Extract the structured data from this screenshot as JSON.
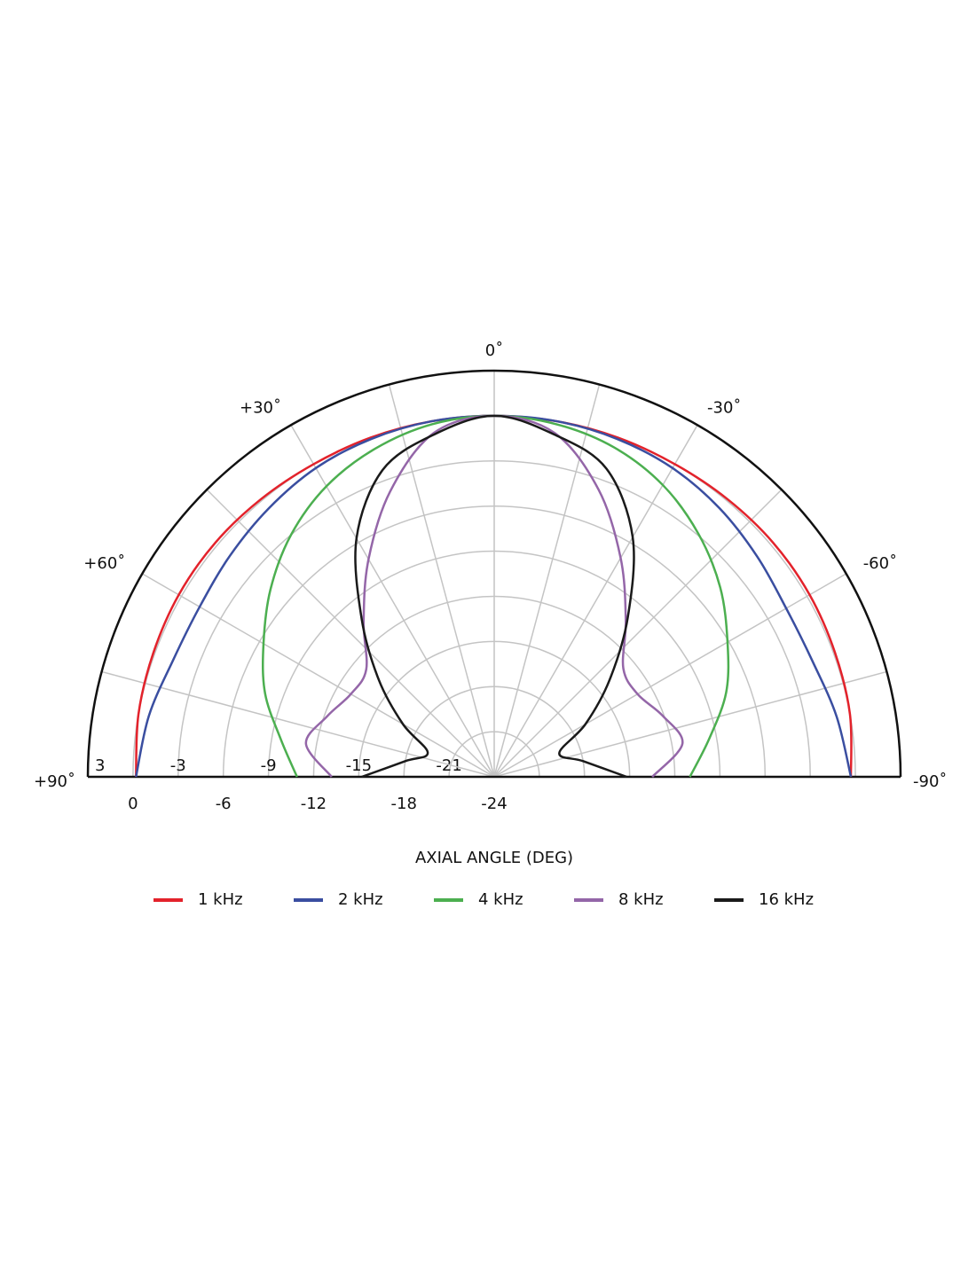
{
  "chart_data": {
    "type": "polar",
    "xlabel": "AXIAL ANGLE (DEG)",
    "xlim": [
      -90,
      90
    ],
    "xticks": [
      {
        "value": 90,
        "label": "+90˚"
      },
      {
        "value": 60,
        "label": "+60˚"
      },
      {
        "value": 30,
        "label": "+30˚"
      },
      {
        "value": 0,
        "label": "0˚"
      },
      {
        "value": -30,
        "label": "-30˚"
      },
      {
        "value": -60,
        "label": "-60˚"
      },
      {
        "value": -90,
        "label": "-90˚"
      }
    ],
    "ylim": [
      -24,
      3
    ],
    "yticks": [
      3,
      0,
      -3,
      -6,
      -9,
      -12,
      -15,
      -18,
      -21,
      -24
    ],
    "grid": true,
    "x": [
      -90,
      -80,
      -70,
      -60,
      -50,
      -40,
      -30,
      -20,
      -10,
      0,
      10,
      20,
      30,
      40,
      50,
      60,
      70,
      80,
      90
    ],
    "series": [
      {
        "name": "1 kHz",
        "color": "#e3222b",
        "values": [
          -0.3,
          0,
          0.1,
          0.2,
          0.2,
          0.1,
          0,
          0,
          0,
          0,
          0,
          0,
          0,
          0.1,
          0.2,
          0.2,
          0.1,
          0,
          -0.2
        ]
      },
      {
        "name": "2 kHz",
        "color": "#3a4ea0",
        "values": [
          -0.3,
          -0.9,
          -1.5,
          -1.6,
          -1.2,
          -0.7,
          -0.3,
          -0.1,
          0,
          0,
          0,
          -0.1,
          -0.3,
          -0.7,
          -1.1,
          -1.4,
          -1.3,
          -0.7,
          -0.2
        ]
      },
      {
        "name": "4 kHz",
        "color": "#4caf50",
        "values": [
          -11,
          -9.5,
          -7.6,
          -6.1,
          -4.4,
          -2.9,
          -1.6,
          -0.7,
          -0.2,
          0,
          -0.2,
          -0.8,
          -1.7,
          -3,
          -4.6,
          -6.3,
          -7.8,
          -9.6,
          -10.9
        ]
      },
      {
        "name": "8 kHz",
        "color": "#9466a8",
        "values": [
          -13.5,
          -11.3,
          -12.1,
          -13,
          -12.8,
          -10.4,
          -7.2,
          -3.7,
          -0.8,
          0,
          -0.8,
          -3.8,
          -7.3,
          -10.5,
          -12.9,
          -13,
          -12.2,
          -11.3,
          -13.2
        ]
      },
      {
        "name": "16 kHz",
        "color": "#1a1a1a",
        "values": [
          -15.2,
          -18,
          -19.4,
          -17,
          -14,
          -10.2,
          -5.6,
          -2.2,
          -0.9,
          0,
          -0.9,
          -2.3,
          -5.7,
          -10.3,
          -14,
          -17,
          -19.3,
          -18,
          -15.2
        ]
      }
    ]
  }
}
